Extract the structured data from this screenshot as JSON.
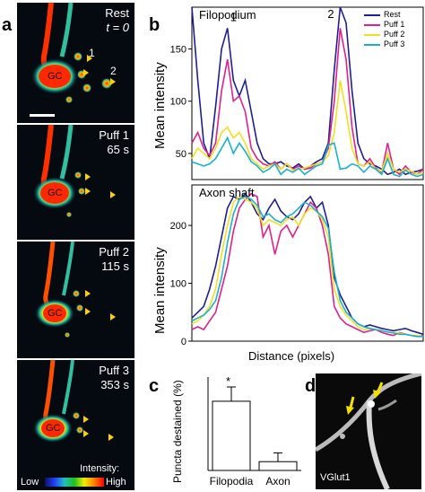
{
  "figure": {
    "panels": {
      "a": "a",
      "b": "b",
      "c": "c",
      "d": "d"
    }
  },
  "panel_a": {
    "frames": [
      {
        "title": "Rest",
        "time": "t = 0",
        "gc": "GC",
        "labels": [
          "1",
          "2"
        ]
      },
      {
        "title": "Puff 1",
        "time": "65 s",
        "gc": "GC"
      },
      {
        "title": "Puff 2",
        "time": "115 s",
        "gc": "GC"
      },
      {
        "title": "Puff 3",
        "time": "353 s",
        "gc": "GC"
      }
    ],
    "colorbar": {
      "title": "Intensity:",
      "low": "Low",
      "high": "High"
    }
  },
  "panel_d": {
    "label": "VGlut1"
  },
  "colors": {
    "Rest": "#1f1f8f",
    "Puff 1": "#e0208c",
    "Puff 2": "#f0e020",
    "Puff 3": "#1ab0d0",
    "bar_fill": "#ffffff"
  },
  "chart_data": [
    {
      "type": "line",
      "title": "Filopodium",
      "ylabel": "Mean intensity",
      "xlabel": "",
      "ylim": [
        25,
        190
      ],
      "yticks": [
        50,
        100,
        150
      ],
      "peak_labels": [
        "1",
        "2"
      ],
      "legend": [
        "Rest",
        "Puff 1",
        "Puff 2",
        "Puff 3"
      ],
      "x": [
        1,
        2,
        3,
        4,
        5,
        6,
        7,
        8,
        9,
        10,
        11,
        12,
        13,
        14,
        15,
        16,
        17,
        18,
        19,
        20,
        21,
        22,
        23,
        24,
        25,
        26,
        27,
        28,
        29,
        30,
        31,
        32,
        33,
        34,
        35,
        36,
        37,
        38,
        39,
        40
      ],
      "series": [
        {
          "name": "Rest",
          "values": [
            190,
            120,
            60,
            45,
            95,
            150,
            170,
            120,
            105,
            120,
            90,
            60,
            45,
            40,
            40,
            42,
            38,
            36,
            40,
            35,
            38,
            42,
            45,
            60,
            130,
            190,
            175,
            110,
            60,
            45,
            40,
            38,
            35,
            30,
            32,
            35,
            30,
            32,
            33,
            35
          ]
        },
        {
          "name": "Puff 1",
          "values": [
            60,
            70,
            55,
            48,
            60,
            110,
            140,
            100,
            105,
            90,
            55,
            45,
            40,
            38,
            42,
            35,
            40,
            35,
            38,
            35,
            36,
            40,
            42,
            55,
            100,
            170,
            140,
            75,
            40,
            38,
            45,
            36,
            32,
            60,
            35,
            30,
            38,
            32,
            30,
            35
          ]
        },
        {
          "name": "Puff 2",
          "values": [
            45,
            55,
            50,
            45,
            55,
            70,
            75,
            65,
            70,
            60,
            45,
            40,
            35,
            38,
            40,
            35,
            40,
            34,
            35,
            36,
            38,
            40,
            42,
            48,
            70,
            120,
            90,
            55,
            40,
            38,
            42,
            35,
            33,
            50,
            35,
            32,
            35,
            33,
            30,
            32
          ]
        },
        {
          "name": "Puff 3",
          "values": [
            42,
            40,
            38,
            40,
            45,
            55,
            65,
            50,
            60,
            52,
            42,
            38,
            32,
            35,
            40,
            30,
            35,
            32,
            36,
            30,
            34,
            38,
            40,
            58,
            60,
            35,
            36,
            40,
            38,
            32,
            38,
            35,
            30,
            45,
            30,
            28,
            34,
            30,
            28,
            30
          ]
        }
      ]
    },
    {
      "type": "line",
      "title": "Axon shaft",
      "ylabel": "Mean intensity",
      "xlabel": "Distance (pixels)",
      "ylim": [
        0,
        270
      ],
      "yticks": [
        0,
        100,
        200
      ],
      "x": [
        1,
        2,
        3,
        4,
        5,
        6,
        7,
        8,
        9,
        10,
        11,
        12,
        13,
        14,
        15,
        16,
        17,
        18,
        19,
        20,
        21,
        22,
        23,
        24,
        25,
        26,
        27,
        28,
        29,
        30,
        31,
        32,
        33,
        34,
        35,
        36,
        37,
        38,
        39,
        40
      ],
      "series": [
        {
          "name": "Rest",
          "values": [
            40,
            50,
            60,
            90,
            130,
            180,
            230,
            250,
            245,
            255,
            240,
            220,
            210,
            230,
            245,
            225,
            215,
            210,
            220,
            240,
            250,
            230,
            240,
            200,
            110,
            80,
            60,
            40,
            30,
            25,
            28,
            25,
            22,
            20,
            18,
            20,
            22,
            18,
            15,
            12
          ]
        },
        {
          "name": "Puff 1",
          "values": [
            20,
            25,
            20,
            35,
            50,
            90,
            130,
            190,
            230,
            245,
            255,
            250,
            180,
            200,
            150,
            190,
            200,
            180,
            200,
            220,
            240,
            230,
            200,
            150,
            60,
            40,
            30,
            25,
            20,
            15,
            18,
            20,
            15,
            12,
            10,
            15,
            12,
            10,
            8,
            10
          ]
        },
        {
          "name": "Puff 2",
          "values": [
            30,
            35,
            45,
            60,
            90,
            150,
            200,
            240,
            250,
            245,
            240,
            230,
            200,
            210,
            205,
            200,
            210,
            215,
            200,
            220,
            230,
            225,
            210,
            180,
            90,
            60,
            45,
            35,
            25,
            20,
            22,
            20,
            18,
            15,
            15,
            14,
            12,
            10,
            10,
            8
          ]
        },
        {
          "name": "Puff 3",
          "values": [
            35,
            40,
            45,
            55,
            70,
            110,
            170,
            220,
            245,
            250,
            245,
            235,
            215,
            220,
            210,
            205,
            215,
            220,
            230,
            240,
            235,
            225,
            215,
            195,
            120,
            70,
            50,
            40,
            30,
            25,
            22,
            20,
            18,
            16,
            14,
            12,
            12,
            10,
            8,
            8
          ]
        }
      ]
    },
    {
      "type": "bar",
      "ylabel": "Puncta destained (%)",
      "categories": [
        "Filopodia",
        "Axon"
      ],
      "values": [
        63,
        8
      ],
      "errors": [
        13,
        8
      ],
      "significance": [
        "*",
        ""
      ],
      "ylim": [
        0,
        85
      ]
    }
  ]
}
